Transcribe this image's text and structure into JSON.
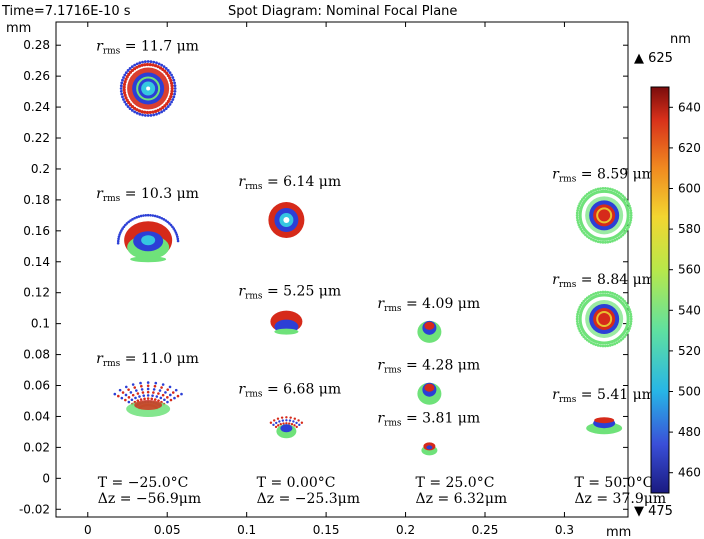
{
  "header": {
    "time_label": "Time=7.1716E-10 s",
    "title": "Spot Diagram: Nominal Focal Plane"
  },
  "chart_data": {
    "type": "scatter",
    "title": "Spot Diagram: Nominal Focal Plane",
    "xlabel": "mm",
    "ylabel": "mm",
    "xlim": [
      -0.02,
      0.34
    ],
    "ylim": [
      -0.025,
      0.295
    ],
    "xticks": [
      0,
      0.05,
      0.1,
      0.15,
      0.2,
      0.25,
      0.3
    ],
    "xtick_labels": [
      "0",
      "0.05",
      "0.1",
      "0.15",
      "0.2",
      "0.25",
      "0.3"
    ],
    "yticks": [
      -0.02,
      0,
      0.02,
      0.04,
      0.06,
      0.08,
      0.1,
      0.12,
      0.14,
      0.16,
      0.18,
      0.2,
      0.22,
      0.24,
      0.26,
      0.28
    ],
    "ytick_labels": [
      "-0.02",
      "0",
      "0.02",
      "0.04",
      "0.06",
      "0.08",
      "0.1",
      "0.12",
      "0.14",
      "0.16",
      "0.18",
      "0.2",
      "0.22",
      "0.24",
      "0.26",
      "0.28"
    ],
    "grid": false,
    "spots": [
      {
        "x": 0.038,
        "y": 0.252,
        "shape": "round-large",
        "rms": "11.7"
      },
      {
        "x": 0.038,
        "y": 0.152,
        "shape": "cap",
        "rms": "10.3"
      },
      {
        "x": 0.038,
        "y": 0.05,
        "shape": "fan",
        "rms": "11.0"
      },
      {
        "x": 0.125,
        "y": 0.167,
        "shape": "round-small",
        "rms": "6.14"
      },
      {
        "x": 0.125,
        "y": 0.1,
        "shape": "cap-small",
        "rms": "5.25"
      },
      {
        "x": 0.125,
        "y": 0.033,
        "shape": "fan-small",
        "rms": "6.68"
      },
      {
        "x": 0.215,
        "y": 0.096,
        "shape": "blob",
        "rms": "4.09"
      },
      {
        "x": 0.215,
        "y": 0.056,
        "shape": "blob",
        "rms": "4.28"
      },
      {
        "x": 0.215,
        "y": 0.02,
        "shape": "tiny",
        "rms": "3.81"
      },
      {
        "x": 0.325,
        "y": 0.17,
        "shape": "ring-green",
        "rms": "8.59"
      },
      {
        "x": 0.325,
        "y": 0.103,
        "shape": "ring-green",
        "rms": "8.84"
      },
      {
        "x": 0.325,
        "y": 0.035,
        "shape": "flat",
        "rms": "5.41"
      }
    ],
    "rms_prefix": "r",
    "rms_subscript": "rms",
    "rms_unit": "= {v} μm",
    "columns": [
      {
        "x": 0.0,
        "T": "T = −25.0°C",
        "dz": "Δz = −56.9μm"
      },
      {
        "x": 0.1,
        "T": "T = 0.00°C",
        "dz": "Δz = −25.3μm"
      },
      {
        "x": 0.2,
        "T": "T = 25.0°C",
        "dz": "Δz = 6.32μm"
      },
      {
        "x": 0.3,
        "T": "T = 50.0°C",
        "dz": "Δz = 37.9μm"
      }
    ],
    "colorbar": {
      "unit": "nm",
      "max_label": "▲ 625",
      "min_label": "▼ 475",
      "range": [
        450,
        650
      ],
      "ticks": [
        460,
        480,
        500,
        520,
        540,
        560,
        580,
        600,
        620,
        640
      ],
      "tick_labels": [
        "460",
        "480",
        "500",
        "520",
        "540",
        "560",
        "580",
        "600",
        "620",
        "640"
      ],
      "colors": [
        "#1a1a80",
        "#3a4fd8",
        "#27b5e6",
        "#5fe0a0",
        "#b8e84a",
        "#f2d630",
        "#f08a20",
        "#d8301a",
        "#7a0c0c"
      ]
    }
  }
}
